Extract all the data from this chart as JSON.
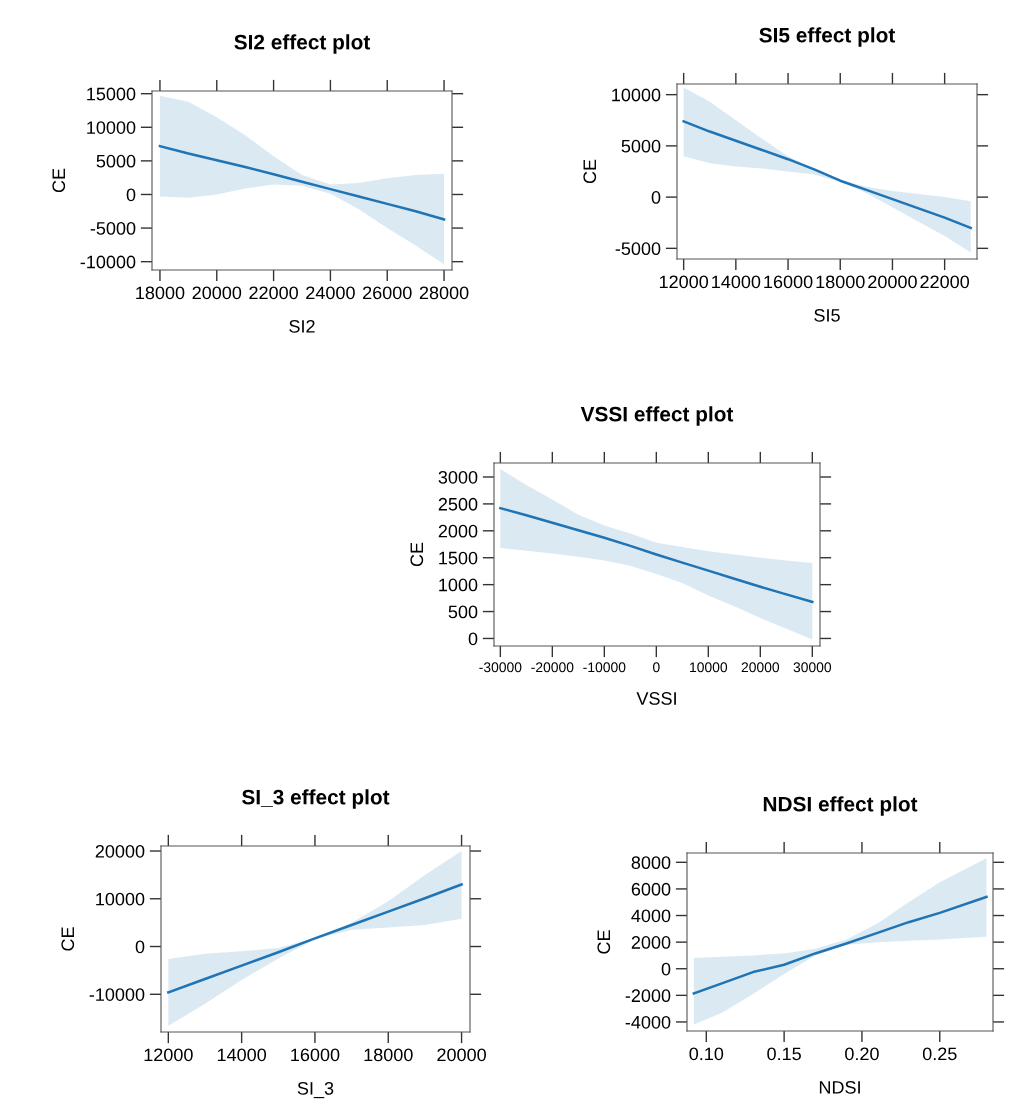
{
  "chart_data": [
    {
      "type": "line",
      "title": "SI2 effect plot",
      "xlabel": "SI2",
      "ylabel": "CE",
      "xlim": [
        17720,
        28280
      ],
      "ylim": [
        -11240,
        15400
      ],
      "xticks": [
        18000,
        20000,
        22000,
        24000,
        26000,
        28000
      ],
      "yticks": [
        -10000,
        -5000,
        0,
        5000,
        10000,
        15000
      ],
      "grid": false,
      "marker": "none",
      "line_style": "solid",
      "series": [
        {
          "color": "#1f74b5",
          "x": [
            18000,
            19000,
            20000,
            21000,
            22000,
            23000,
            24000,
            25000,
            26000,
            27000,
            28000
          ],
          "values": [
            7200,
            6100,
            5100,
            4100,
            3000,
            1900,
            800,
            -300,
            -1400,
            -2500,
            -3700
          ],
          "upper": [
            14700,
            13800,
            11500,
            8800,
            5700,
            2900,
            1500,
            1700,
            2400,
            2900,
            3100
          ],
          "lower": [
            -300,
            -500,
            0,
            900,
            1500,
            1300,
            100,
            -2200,
            -5000,
            -7600,
            -10400
          ]
        }
      ]
    },
    {
      "type": "line",
      "title": "SI5 effect plot",
      "xlabel": "SI5",
      "ylabel": "CE",
      "xlim": [
        11745,
        23240
      ],
      "ylim": [
        -6040,
        11040
      ],
      "xticks": [
        12000,
        14000,
        16000,
        18000,
        20000,
        22000
      ],
      "yticks": [
        -5000,
        0,
        5000,
        10000
      ],
      "grid": false,
      "marker": "none",
      "line_style": "solid",
      "series": [
        {
          "color": "#1f74b5",
          "x": [
            12000,
            13000,
            14000,
            15000,
            16000,
            17000,
            18000,
            19000,
            20000,
            21000,
            22000,
            23000
          ],
          "values": [
            7400,
            6400,
            5500,
            4600,
            3700,
            2700,
            1600,
            700,
            -200,
            -1100,
            -2000,
            -3000
          ],
          "upper": [
            10700,
            9300,
            7500,
            5700,
            4000,
            2700,
            1700,
            1000,
            600,
            300,
            0,
            -400
          ],
          "lower": [
            4000,
            3300,
            3000,
            2800,
            2500,
            2200,
            1500,
            400,
            -1000,
            -2400,
            -3800,
            -5400
          ]
        }
      ]
    },
    {
      "type": "line",
      "title": "VSSI effect plot",
      "xlabel": "VSSI",
      "ylabel": "CE",
      "xlim": [
        -31220,
        31480
      ],
      "ylim": [
        -140,
        3260
      ],
      "xticks": [
        -30000,
        -20000,
        -10000,
        0,
        10000,
        20000,
        30000
      ],
      "yticks": [
        0,
        500,
        1000,
        1500,
        2000,
        2500,
        3000
      ],
      "grid": false,
      "marker": "none",
      "line_style": "solid",
      "series": [
        {
          "color": "#1f74b5",
          "x": [
            -30000,
            -25000,
            -20000,
            -15000,
            -10000,
            -5000,
            0,
            5000,
            10000,
            15000,
            20000,
            25000,
            30000
          ],
          "values": [
            2420,
            2290,
            2150,
            2010,
            1870,
            1720,
            1560,
            1410,
            1260,
            1110,
            960,
            820,
            680
          ],
          "upper": [
            3150,
            2850,
            2580,
            2300,
            2100,
            1950,
            1780,
            1700,
            1620,
            1560,
            1500,
            1450,
            1400
          ],
          "lower": [
            1680,
            1630,
            1580,
            1520,
            1450,
            1350,
            1200,
            1030,
            800,
            600,
            380,
            180,
            -20
          ]
        }
      ]
    },
    {
      "type": "line",
      "title": "SI_3 effect plot",
      "xlabel": "SI_3",
      "ylabel": "CE",
      "xlim": [
        11800,
        20230
      ],
      "ylim": [
        -17900,
        21050
      ],
      "xticks": [
        12000,
        14000,
        16000,
        18000,
        20000
      ],
      "yticks": [
        -10000,
        0,
        10000,
        20000
      ],
      "grid": false,
      "marker": "none",
      "line_style": "solid",
      "series": [
        {
          "color": "#1f74b5",
          "x": [
            12000,
            13000,
            14000,
            15000,
            16000,
            17000,
            18000,
            19000,
            20000
          ],
          "values": [
            -9600,
            -6800,
            -4000,
            -1200,
            1700,
            4500,
            7300,
            10100,
            13000
          ],
          "upper": [
            -2600,
            -1500,
            -1000,
            -300,
            1800,
            5000,
            9500,
            15000,
            20000
          ],
          "lower": [
            -16600,
            -12000,
            -7000,
            -2500,
            1500,
            3500,
            4000,
            4500,
            5800
          ]
        }
      ]
    },
    {
      "type": "line",
      "title": "NDSI effect plot",
      "xlabel": "NDSI",
      "ylabel": "CE",
      "xlim": [
        0.0876,
        0.2842
      ],
      "ylim": [
        -4680,
        8700
      ],
      "xticks": [
        {
          "value": 0.1,
          "label": "0.10"
        },
        0.15,
        {
          "value": 0.2,
          "label": "0.20"
        },
        0.25
      ],
      "yticks": [
        -4000,
        -2000,
        0,
        2000,
        4000,
        6000,
        8000
      ],
      "grid": false,
      "marker": "none",
      "line_style": "solid",
      "series": [
        {
          "color": "#1f74b5",
          "x": [
            0.092,
            0.11,
            0.13,
            0.15,
            0.17,
            0.19,
            0.21,
            0.23,
            0.25,
            0.28
          ],
          "values": [
            -1850,
            -1100,
            -250,
            300,
            1150,
            1900,
            2700,
            3500,
            4200,
            5400
          ],
          "upper": [
            800,
            900,
            1000,
            1150,
            1500,
            2200,
            3400,
            5000,
            6500,
            8300
          ],
          "lower": [
            -4200,
            -3300,
            -1900,
            -400,
            1000,
            1800,
            2000,
            2100,
            2200,
            2400
          ]
        }
      ]
    }
  ]
}
